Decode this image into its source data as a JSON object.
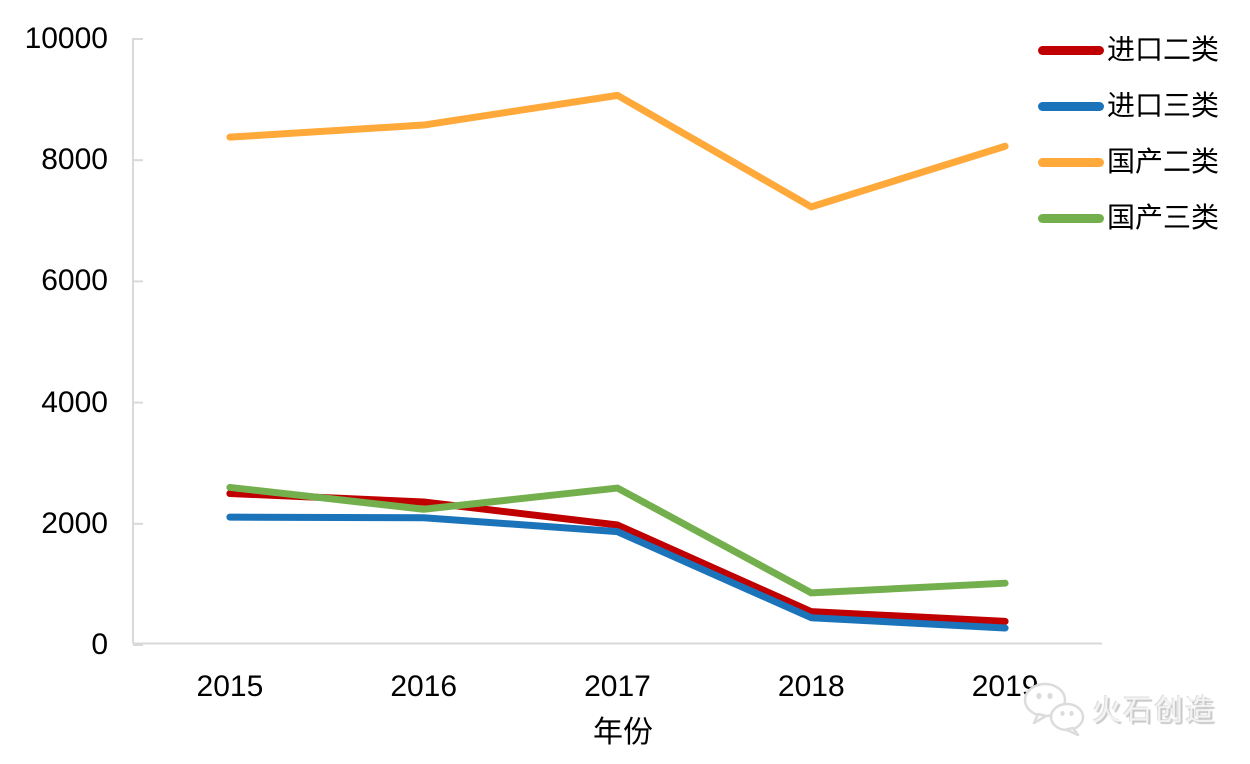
{
  "watermark": {
    "text": "火石创造",
    "icon": "wechat-icon"
  },
  "colors": {
    "axis": "#D9D9D9",
    "text": "#000000",
    "background": "#FFFFFF"
  },
  "chart_data": {
    "type": "line",
    "title": "",
    "xlabel": "年份",
    "ylabel": "",
    "x": [
      "2015",
      "2016",
      "2017",
      "2018",
      "2019"
    ],
    "ylim": [
      0,
      10000
    ],
    "yticks": [
      0,
      2000,
      4000,
      6000,
      8000,
      10000
    ],
    "grid": false,
    "legend_position": "right-top",
    "line_width": 7,
    "series": [
      {
        "id": "import-class-2",
        "name": "进口二类",
        "color": "#C00000",
        "values": [
          2500,
          2360,
          1980,
          550,
          390
        ]
      },
      {
        "id": "import-class-3",
        "name": "进口三类",
        "color": "#1B73B9",
        "values": [
          2110,
          2100,
          1870,
          450,
          280
        ]
      },
      {
        "id": "domestic-class-2",
        "name": "国产二类",
        "color": "#FFA93A",
        "values": [
          8380,
          8580,
          9070,
          7230,
          8230
        ]
      },
      {
        "id": "domestic-class-3",
        "name": "国产三类",
        "color": "#73B04D",
        "values": [
          2600,
          2240,
          2590,
          860,
          1020
        ]
      }
    ]
  }
}
